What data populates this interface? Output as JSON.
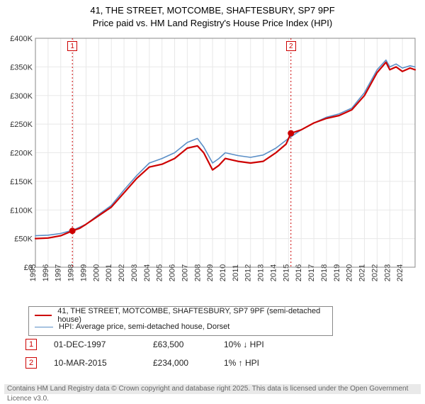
{
  "title": {
    "line1": "41, THE STREET, MOTCOMBE, SHAFTESBURY, SP7 9PF",
    "line2": "Price paid vs. HM Land Registry's House Price Index (HPI)"
  },
  "chart": {
    "type": "line",
    "background_color": "#ffffff",
    "grid_color": "#e8e8e8",
    "axis_color": "#888888",
    "font_size_axis": 11,
    "xlim": [
      1995,
      2025
    ],
    "ylim": [
      0,
      400000
    ],
    "ytick_step": 50000,
    "ytick_labels": [
      "£0",
      "£50K",
      "£100K",
      "£150K",
      "£200K",
      "£250K",
      "£300K",
      "£350K",
      "£400K"
    ],
    "x_ticks": [
      1995,
      1996,
      1997,
      1998,
      1999,
      2000,
      2001,
      2002,
      2003,
      2004,
      2005,
      2006,
      2007,
      2008,
      2009,
      2010,
      2011,
      2012,
      2013,
      2014,
      2015,
      2016,
      2017,
      2018,
      2019,
      2020,
      2021,
      2022,
      2023,
      2024
    ],
    "vertical_markers": [
      {
        "label": "1",
        "x": 1997.92,
        "color": "#cd0000"
      },
      {
        "label": "2",
        "x": 2015.19,
        "color": "#cd0000"
      }
    ],
    "sale_points": [
      {
        "x": 1997.92,
        "y": 63500,
        "color": "#cd0000"
      },
      {
        "x": 2015.19,
        "y": 234000,
        "color": "#cd0000"
      }
    ],
    "series": [
      {
        "name": "41, THE STREET, MOTCOMBE, SHAFTESBURY, SP7 9PF (semi-detached house)",
        "color": "#cd0000",
        "line_width": 2.2,
        "data": [
          [
            1995,
            50000
          ],
          [
            1996,
            51000
          ],
          [
            1997,
            55000
          ],
          [
            1997.92,
            63500
          ],
          [
            1998.5,
            68000
          ],
          [
            1999,
            75000
          ],
          [
            2000,
            90000
          ],
          [
            2001,
            105000
          ],
          [
            2002,
            130000
          ],
          [
            2003,
            155000
          ],
          [
            2004,
            175000
          ],
          [
            2005,
            180000
          ],
          [
            2006,
            190000
          ],
          [
            2007,
            208000
          ],
          [
            2007.8,
            212000
          ],
          [
            2008.3,
            200000
          ],
          [
            2009,
            170000
          ],
          [
            2009.5,
            178000
          ],
          [
            2010,
            190000
          ],
          [
            2011,
            185000
          ],
          [
            2012,
            182000
          ],
          [
            2013,
            185000
          ],
          [
            2014,
            200000
          ],
          [
            2014.8,
            215000
          ],
          [
            2015.19,
            234000
          ],
          [
            2016,
            240000
          ],
          [
            2017,
            252000
          ],
          [
            2018,
            260000
          ],
          [
            2019,
            265000
          ],
          [
            2020,
            275000
          ],
          [
            2021,
            300000
          ],
          [
            2022,
            340000
          ],
          [
            2022.7,
            358000
          ],
          [
            2023,
            345000
          ],
          [
            2023.5,
            350000
          ],
          [
            2024,
            342000
          ],
          [
            2024.6,
            348000
          ],
          [
            2025,
            345000
          ]
        ]
      },
      {
        "name": "HPI: Average price, semi-detached house, Dorset",
        "color": "#5b8fc7",
        "line_width": 1.6,
        "data": [
          [
            1995,
            55000
          ],
          [
            1996,
            56000
          ],
          [
            1997,
            59000
          ],
          [
            1998,
            65000
          ],
          [
            1999,
            75000
          ],
          [
            2000,
            92000
          ],
          [
            2001,
            108000
          ],
          [
            2002,
            135000
          ],
          [
            2003,
            160000
          ],
          [
            2004,
            182000
          ],
          [
            2005,
            190000
          ],
          [
            2006,
            200000
          ],
          [
            2007,
            218000
          ],
          [
            2007.8,
            225000
          ],
          [
            2008.3,
            210000
          ],
          [
            2009,
            182000
          ],
          [
            2009.5,
            190000
          ],
          [
            2010,
            200000
          ],
          [
            2011,
            195000
          ],
          [
            2012,
            192000
          ],
          [
            2013,
            196000
          ],
          [
            2014,
            208000
          ],
          [
            2015,
            225000
          ],
          [
            2016,
            240000
          ],
          [
            2017,
            252000
          ],
          [
            2018,
            262000
          ],
          [
            2019,
            268000
          ],
          [
            2020,
            278000
          ],
          [
            2021,
            305000
          ],
          [
            2022,
            345000
          ],
          [
            2022.7,
            362000
          ],
          [
            2023,
            350000
          ],
          [
            2023.5,
            355000
          ],
          [
            2024,
            348000
          ],
          [
            2024.6,
            352000
          ],
          [
            2025,
            350000
          ]
        ]
      }
    ]
  },
  "legend": {
    "items": [
      {
        "color": "#cd0000",
        "width": 2.5,
        "label": "41, THE STREET, MOTCOMBE, SHAFTESBURY, SP7 9PF (semi-detached house)"
      },
      {
        "color": "#5b8fc7",
        "width": 1.8,
        "label": "HPI: Average price, semi-detached house, Dorset"
      }
    ]
  },
  "marker_rows": [
    {
      "num": "1",
      "date": "01-DEC-1997",
      "price": "£63,500",
      "delta": "10% ↓ HPI"
    },
    {
      "num": "2",
      "date": "10-MAR-2015",
      "price": "£234,000",
      "delta": "1% ↑ HPI"
    }
  ],
  "footer": "Contains HM Land Registry data © Crown copyright and database right 2025. This data is licensed under the Open Government Licence v3.0."
}
